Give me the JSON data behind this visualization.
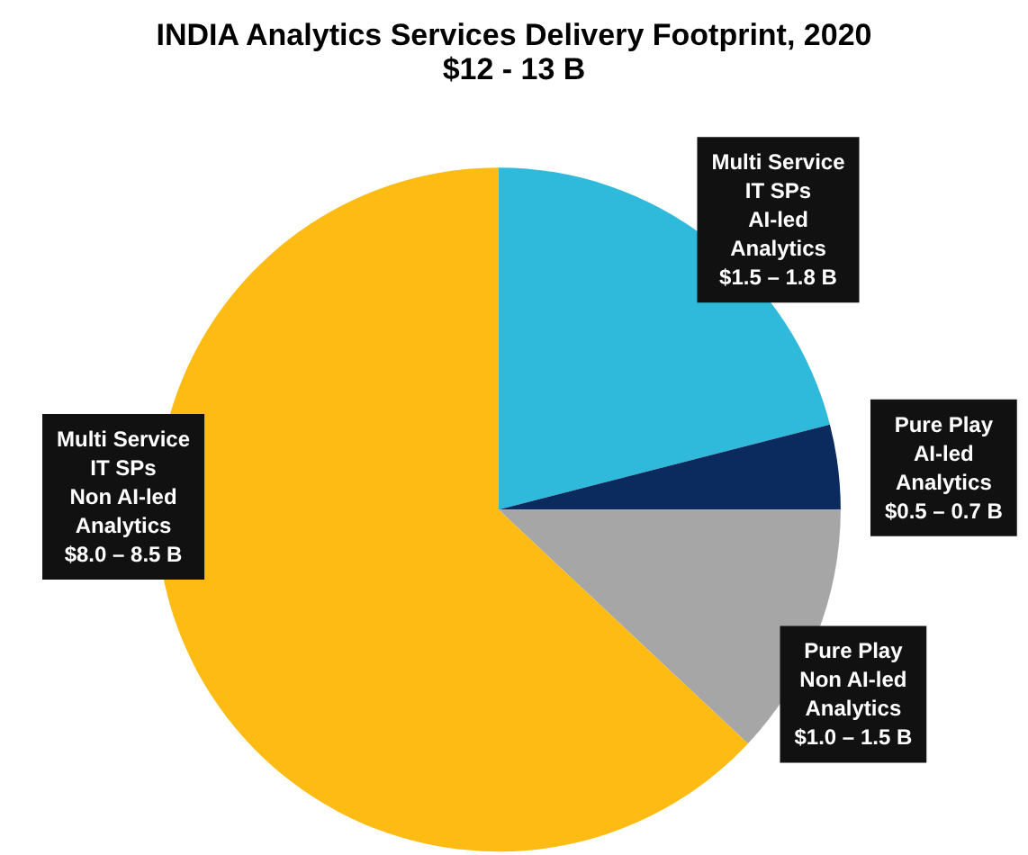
{
  "chart_data": {
    "type": "pie",
    "title": "INDIA Analytics Services Delivery Footprint, 2020",
    "subtitle": "$12 - 13 B",
    "categories": [
      "Multi Service\nIT SPs\nAI-led\nAnalytics\n$1.5 – 1.8 B",
      "Pure Play\nAI-led\nAnalytics\n$0.5 – 0.7 B",
      "Pure Play\nNon AI-led\nAnalytics\n$1.0 – 1.5 B",
      "Multi Service\nIT SPs\nNon AI-led\nAnalytics\n$8.0 – 8.5 B"
    ],
    "values": [
      21,
      4,
      12,
      63
    ],
    "colors": [
      "#2fbadc",
      "#0b2b5e",
      "#a6a6a6",
      "#fdbb13"
    ]
  }
}
